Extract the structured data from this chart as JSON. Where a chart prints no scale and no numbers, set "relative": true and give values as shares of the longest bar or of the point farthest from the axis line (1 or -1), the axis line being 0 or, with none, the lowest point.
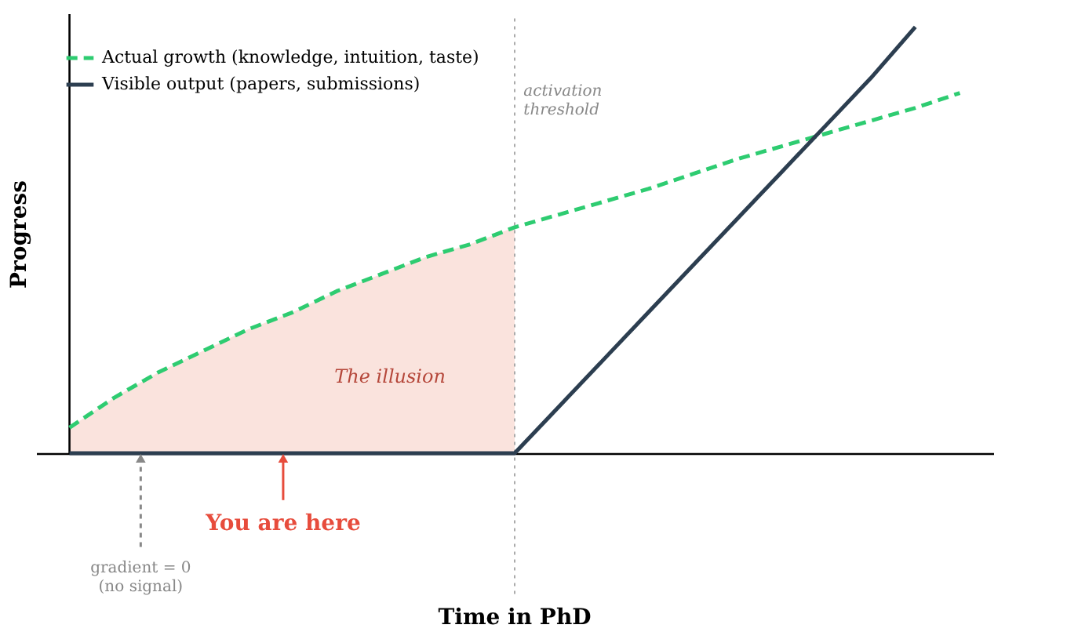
{
  "chart_data": {
    "type": "line",
    "relative": true,
    "ylabel": "Progress",
    "categories": [
      null,
      null,
      null,
      null,
      null,
      null,
      null,
      null,
      null,
      null,
      null,
      null,
      null,
      null,
      null,
      null,
      null,
      null,
      null,
      null,
      null
    ],
    "grid": false,
    "legend": "top left",
    "series": [
      {
        "type": "area",
        "color": "#fae3dd",
        "values": [
          0.06,
          0.13,
          0.19,
          0.24,
          0.29,
          0.33,
          0.38,
          0.42,
          0.46,
          0.49,
          0.53,
          null,
          null,
          null,
          null,
          null,
          null,
          null,
          null,
          null,
          null
        ]
      },
      {
        "name": "Actual growth (knowledge, intuition, taste)",
        "color": "#2ecc71",
        "line_style": "dashed",
        "values": [
          0.06,
          0.13,
          0.19,
          0.24,
          0.29,
          0.33,
          0.38,
          0.42,
          0.46,
          0.49,
          0.53,
          0.56,
          0.59,
          0.62,
          0.655,
          0.69,
          0.72,
          0.75,
          0.78,
          0.81,
          0.845
        ]
      },
      {
        "name": "Visible output (papers, submissions)",
        "color": "#2c3e50",
        "line_style": "solid",
        "values": [
          0,
          0,
          0,
          0,
          0,
          0,
          0,
          0,
          0,
          0,
          0,
          0.11,
          0.22,
          0.33,
          0.44,
          0.55,
          0.66,
          0.77,
          0.88,
          1.0,
          null
        ]
      }
    ],
    "annotations": [
      "The illusion",
      "You are here",
      "gradient = 0\n(no signal)",
      "activation\nthreshold",
      "Time in PhD"
    ]
  }
}
